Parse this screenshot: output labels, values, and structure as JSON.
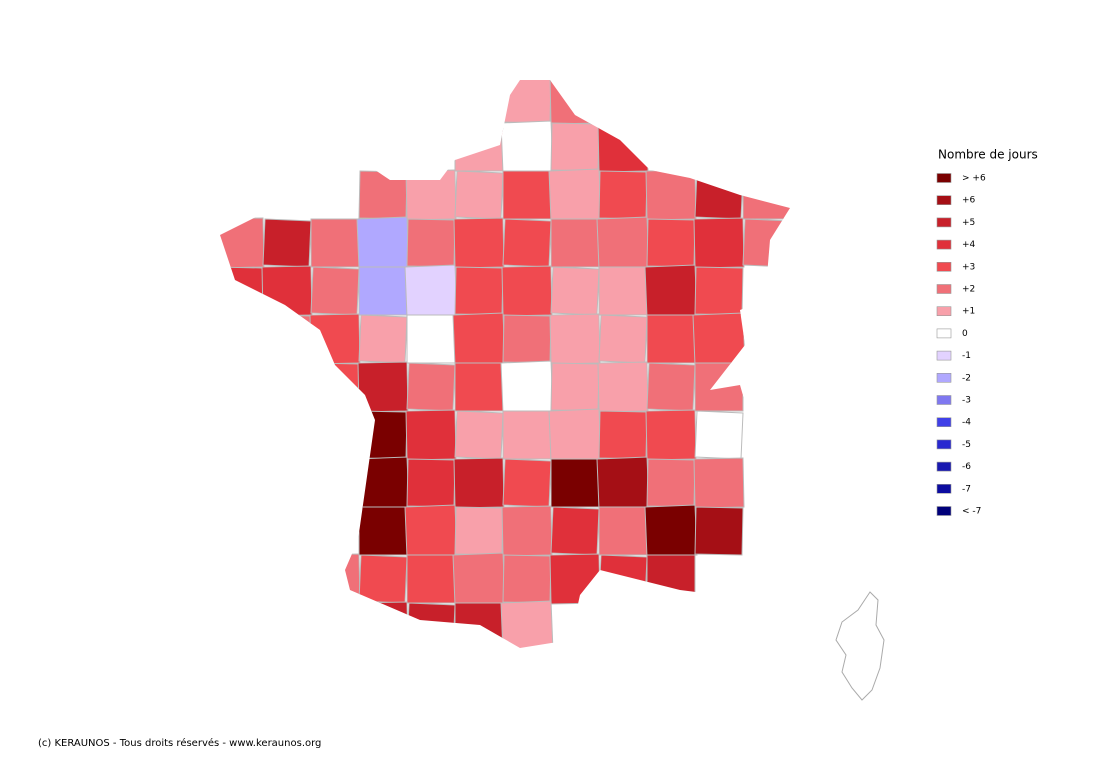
{
  "legend": {
    "title": "Nombre de jours",
    "items": [
      {
        "label": "> +6",
        "color": "#7a0000"
      },
      {
        "label": "+6",
        "color": "#a50f15"
      },
      {
        "label": "+5",
        "color": "#c8202a"
      },
      {
        "label": "+4",
        "color": "#e0303a"
      },
      {
        "label": "+3",
        "color": "#f04a50"
      },
      {
        "label": "+2",
        "color": "#f07078"
      },
      {
        "label": "+1",
        "color": "#f8a0aa"
      },
      {
        "label": "0",
        "color": "#ffffff"
      },
      {
        "label": "-1",
        "color": "#e2d2ff"
      },
      {
        "label": "-2",
        "color": "#b0a8ff"
      },
      {
        "label": "-3",
        "color": "#7f78f0"
      },
      {
        "label": "-4",
        "color": "#4040e8"
      },
      {
        "label": "-5",
        "color": "#2828d0"
      },
      {
        "label": "-6",
        "color": "#1818b0"
      },
      {
        "label": "-7",
        "color": "#0c0ca0"
      },
      {
        "label": "< -7",
        "color": "#00007a"
      }
    ]
  },
  "grid": [
    [
      null,
      null,
      null,
      null,
      null,
      null,
      "+1",
      "+2",
      null,
      null,
      null,
      null
    ],
    [
      null,
      null,
      null,
      null,
      null,
      "+1",
      "0",
      "+1",
      "+4",
      null,
      null,
      null
    ],
    [
      null,
      null,
      null,
      "+2",
      "+1",
      "+1",
      "+3",
      "+1",
      "+3",
      "+2",
      "+5",
      "+2"
    ],
    [
      "+2",
      "+5",
      "+2",
      "-2",
      "+2",
      "+3",
      "+3",
      "+2",
      "+2",
      "+3",
      "+4",
      "+2"
    ],
    [
      "+4",
      "+4",
      "+2",
      "-2",
      "-1",
      "+3",
      "+3",
      "+1",
      "+1",
      "+5",
      "+3",
      null
    ],
    [
      null,
      "+2",
      "+3",
      "+1",
      "0",
      "+3",
      "+2",
      "+1",
      "+1",
      "+3",
      "+3",
      null
    ],
    [
      null,
      null,
      "+3",
      "+5",
      "+2",
      "+3",
      "0",
      "+1",
      "+1",
      "+2",
      "+2",
      null
    ],
    [
      null,
      null,
      null,
      "> +6",
      "+4",
      "+1",
      "+1",
      "+1",
      "+3",
      "+3",
      "0",
      null
    ],
    [
      null,
      null,
      null,
      "> +6",
      "+4",
      "+5",
      "+3",
      "> +6",
      "+6",
      "+2",
      "+2",
      null
    ],
    [
      null,
      null,
      null,
      "> +6",
      "+3",
      "+1",
      "+2",
      "+4",
      "+2",
      "> +6",
      "+6",
      null
    ],
    [
      null,
      null,
      "+2",
      "+3",
      "+3",
      "+2",
      "+2",
      "+4",
      "+4",
      "+5",
      null,
      null
    ],
    [
      null,
      null,
      null,
      "+5",
      "+5",
      "+5",
      "+1",
      null,
      null,
      null,
      null,
      null
    ]
  ],
  "credit": "(c) KERAUNOS - Tous droits réservés - www.keraunos.org"
}
